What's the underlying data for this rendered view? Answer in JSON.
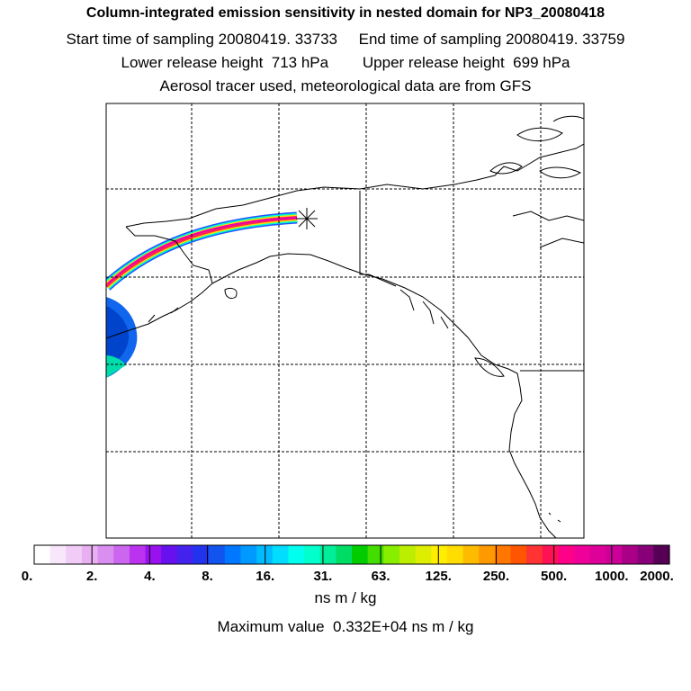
{
  "header": {
    "title": "Column-integrated emission sensitivity in nested domain for NP3_20080418",
    "line1": "Start time of sampling 20080419. 33733     End time of sampling 20080419. 33759",
    "line2": "Lower release height  713 hPa        Upper release height  699 hPa",
    "line3": "Aerosol tracer used, meteorological data are from GFS"
  },
  "colorbar": {
    "colors": [
      "#ffffff",
      "#f8e6fb",
      "#f0ccf7",
      "#e8b0f2",
      "#d98ef0",
      "#cc66ee",
      "#bb33ee",
      "#9911ee",
      "#6611ee",
      "#4422ee",
      "#2233ee",
      "#1155ee",
      "#0077ff",
      "#0099ff",
      "#00bbff",
      "#00ddff",
      "#00ffee",
      "#00ffcc",
      "#00ee99",
      "#00dd66",
      "#00cc00",
      "#44dd00",
      "#88ee00",
      "#bbee00",
      "#ddee00",
      "#ffee00",
      "#ffdd00",
      "#ffbb00",
      "#ff9900",
      "#ff7700",
      "#ff5500",
      "#ff3333",
      "#ff1155",
      "#ff0088",
      "#ee0099",
      "#dd0099",
      "#cc0099",
      "#aa0088",
      "#880077",
      "#550055"
    ],
    "labels": [
      "0.",
      "2.",
      "4.",
      "8.",
      "16.",
      "31.",
      "63.",
      "125.",
      "250.",
      "500.",
      "1000.",
      "2000."
    ],
    "units": "ns m / kg"
  },
  "max_value_text": "Maximum value  0.332E+04 ns m / kg",
  "map": {
    "release_marker_icon": "asterisk-release-point",
    "plume_colors": [
      "#ff00aa",
      "#ff2255",
      "#ffdd00",
      "#00ffcc",
      "#00aaff",
      "#2244ff"
    ]
  }
}
